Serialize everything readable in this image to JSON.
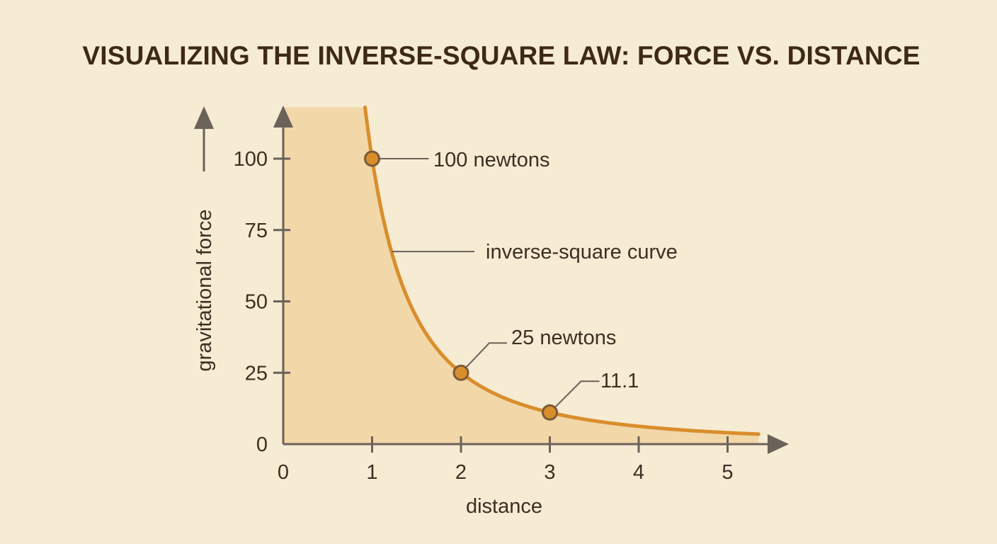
{
  "colors": {
    "background": "#f6ebd3",
    "fill_area": "#f2d7a8",
    "curve": "#d98e2c",
    "axis": "#6b6259",
    "marker_fill": "#d98e2c",
    "marker_stroke": "#7a5a3a",
    "text": "#3d2f22"
  },
  "chart_data": {
    "type": "line",
    "title": "VISUALIZING THE INVERSE-SQUARE LAW: FORCE VS. DISTANCE",
    "xlabel": "distance",
    "ylabel": "gravitational force",
    "xlim": [
      0,
      5.35
    ],
    "ylim": [
      0,
      118
    ],
    "x_ticks": [
      0,
      1,
      2,
      3,
      4,
      5
    ],
    "x_tick_labels": [
      "0",
      "1",
      "2",
      "3",
      "4",
      "5"
    ],
    "y_ticks": [
      0,
      25,
      50,
      75,
      100
    ],
    "y_tick_labels": [
      "0",
      "25",
      "50",
      "75",
      "100"
    ],
    "grid": false,
    "legend": "none",
    "curve_formula": "y = 100 / x^2",
    "curve_x_range": [
      0.92,
      5.35
    ],
    "fill_under_curve": true,
    "points": [
      {
        "x": 1,
        "y": 100,
        "label": "100 newtons"
      },
      {
        "x": 2,
        "y": 25,
        "label": "25 newtons"
      },
      {
        "x": 3,
        "y": 11.1,
        "label": "11.1"
      }
    ],
    "annotations": [
      {
        "text": "inverse-square curve",
        "x": 1.22,
        "y": 67.2
      }
    ]
  }
}
